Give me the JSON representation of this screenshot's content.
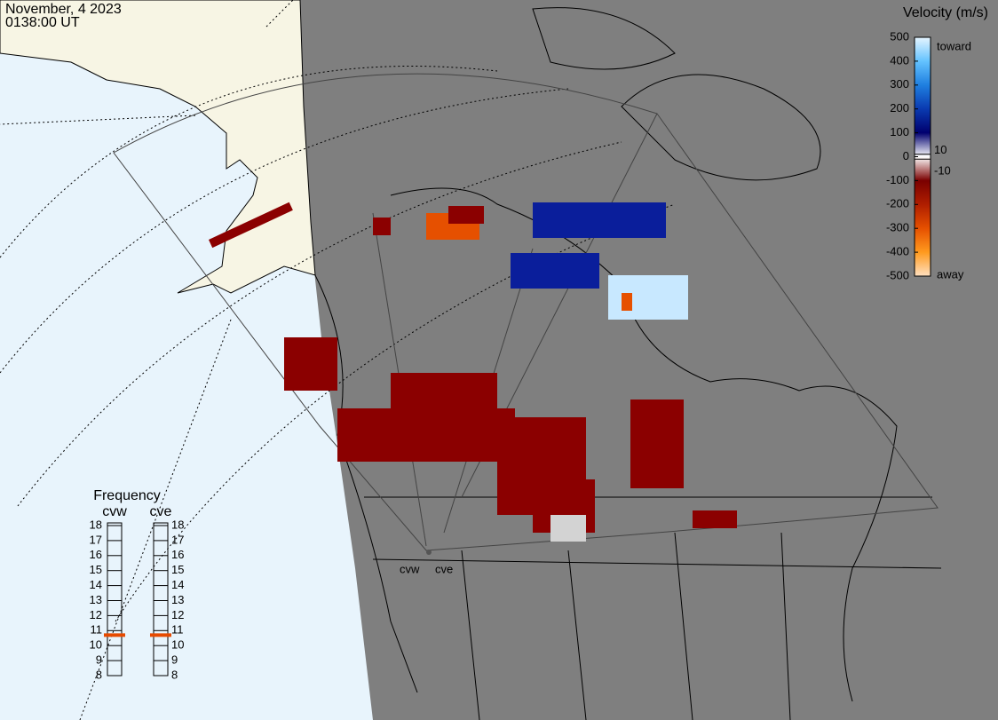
{
  "header": {
    "date": "November, 4 2023",
    "time": "0138:00 UT"
  },
  "velocity_scale": {
    "title": "Velocity (m/s)",
    "ticks": [
      500,
      400,
      300,
      200,
      100,
      0,
      -100,
      -200,
      -300,
      -400,
      -500
    ],
    "inner_ticks": [
      10,
      -10
    ],
    "toward": "toward",
    "away": "away",
    "colors": [
      "#e6f5ff",
      "#64c3ff",
      "#1f7fe0",
      "#0a3ab0",
      "#00006e",
      "#ffffff",
      "#7a0000",
      "#b01e00",
      "#e65000",
      "#ff9a1e",
      "#ffe0c0"
    ]
  },
  "frequency": {
    "title": "Frequency",
    "radars": [
      {
        "name": "cvw",
        "value": 10.7
      },
      {
        "name": "cve",
        "value": 10.7
      }
    ],
    "ticks": [
      8,
      9,
      10,
      11,
      12,
      13,
      14,
      15,
      16,
      17,
      18
    ]
  },
  "map_labels": [
    "cvw",
    "cve"
  ]
}
